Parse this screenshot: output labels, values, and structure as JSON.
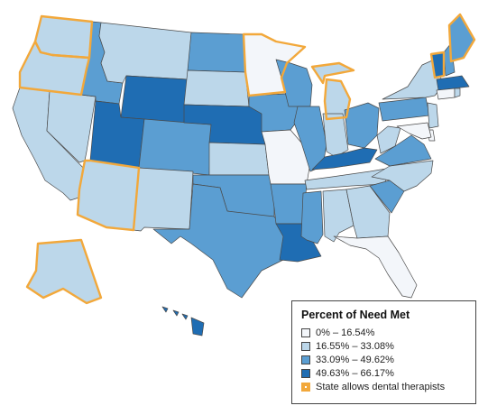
{
  "legend": {
    "title": "Percent of Need Met",
    "bins": [
      {
        "label": "0% – 16.54%",
        "color": "#f3f6fa"
      },
      {
        "label": "16.55% – 33.08%",
        "color": "#bcd7ea"
      },
      {
        "label": "33.09% – 49.62%",
        "color": "#5b9ed2"
      },
      {
        "label": "49.63% – 66.17%",
        "color": "#1f6db3"
      }
    ],
    "therapist_label": "State allows dental therapists",
    "therapist_color": "#f2a83b"
  },
  "states": [
    {
      "abbr": "WA",
      "bin": 1,
      "dental_therapists": true
    },
    {
      "abbr": "OR",
      "bin": 1,
      "dental_therapists": true
    },
    {
      "abbr": "CA",
      "bin": 1,
      "dental_therapists": false
    },
    {
      "abbr": "NV",
      "bin": 1,
      "dental_therapists": false
    },
    {
      "abbr": "ID",
      "bin": 2,
      "dental_therapists": false
    },
    {
      "abbr": "MT",
      "bin": 1,
      "dental_therapists": false
    },
    {
      "abbr": "WY",
      "bin": 3,
      "dental_therapists": false
    },
    {
      "abbr": "UT",
      "bin": 3,
      "dental_therapists": false
    },
    {
      "abbr": "AZ",
      "bin": 1,
      "dental_therapists": true
    },
    {
      "abbr": "CO",
      "bin": 2,
      "dental_therapists": false
    },
    {
      "abbr": "NM",
      "bin": 1,
      "dental_therapists": false
    },
    {
      "abbr": "ND",
      "bin": 2,
      "dental_therapists": false
    },
    {
      "abbr": "SD",
      "bin": 1,
      "dental_therapists": false
    },
    {
      "abbr": "NE",
      "bin": 3,
      "dental_therapists": false
    },
    {
      "abbr": "KS",
      "bin": 1,
      "dental_therapists": false
    },
    {
      "abbr": "OK",
      "bin": 2,
      "dental_therapists": false
    },
    {
      "abbr": "TX",
      "bin": 2,
      "dental_therapists": false
    },
    {
      "abbr": "MN",
      "bin": 0,
      "dental_therapists": true
    },
    {
      "abbr": "IA",
      "bin": 2,
      "dental_therapists": false
    },
    {
      "abbr": "MO",
      "bin": 0,
      "dental_therapists": false
    },
    {
      "abbr": "AR",
      "bin": 2,
      "dental_therapists": false
    },
    {
      "abbr": "LA",
      "bin": 3,
      "dental_therapists": false
    },
    {
      "abbr": "WI",
      "bin": 2,
      "dental_therapists": false
    },
    {
      "abbr": "IL",
      "bin": 2,
      "dental_therapists": false
    },
    {
      "abbr": "MI",
      "bin": 1,
      "dental_therapists": true
    },
    {
      "abbr": "IN",
      "bin": 1,
      "dental_therapists": false
    },
    {
      "abbr": "OH",
      "bin": 2,
      "dental_therapists": false
    },
    {
      "abbr": "KY",
      "bin": 3,
      "dental_therapists": false
    },
    {
      "abbr": "TN",
      "bin": 1,
      "dental_therapists": false
    },
    {
      "abbr": "MS",
      "bin": 2,
      "dental_therapists": false
    },
    {
      "abbr": "AL",
      "bin": 1,
      "dental_therapists": false
    },
    {
      "abbr": "GA",
      "bin": 1,
      "dental_therapists": false
    },
    {
      "abbr": "FL",
      "bin": 0,
      "dental_therapists": false
    },
    {
      "abbr": "SC",
      "bin": 2,
      "dental_therapists": false
    },
    {
      "abbr": "NC",
      "bin": 1,
      "dental_therapists": false
    },
    {
      "abbr": "VA",
      "bin": 2,
      "dental_therapists": false
    },
    {
      "abbr": "WV",
      "bin": 1,
      "dental_therapists": false
    },
    {
      "abbr": "PA",
      "bin": 2,
      "dental_therapists": false
    },
    {
      "abbr": "NY",
      "bin": 1,
      "dental_therapists": false
    },
    {
      "abbr": "VT",
      "bin": 3,
      "dental_therapists": true
    },
    {
      "abbr": "NH",
      "bin": 2,
      "dental_therapists": false
    },
    {
      "abbr": "ME",
      "bin": 2,
      "dental_therapists": true
    },
    {
      "abbr": "MA",
      "bin": 3,
      "dental_therapists": false
    },
    {
      "abbr": "CT",
      "bin": 0,
      "dental_therapists": false
    },
    {
      "abbr": "RI",
      "bin": 1,
      "dental_therapists": false
    },
    {
      "abbr": "NJ",
      "bin": 1,
      "dental_therapists": false
    },
    {
      "abbr": "DE",
      "bin": 0,
      "dental_therapists": false
    },
    {
      "abbr": "MD",
      "bin": 0,
      "dental_therapists": false
    },
    {
      "abbr": "AK",
      "bin": 1,
      "dental_therapists": true
    },
    {
      "abbr": "HI",
      "bin": 3,
      "dental_therapists": false
    }
  ]
}
